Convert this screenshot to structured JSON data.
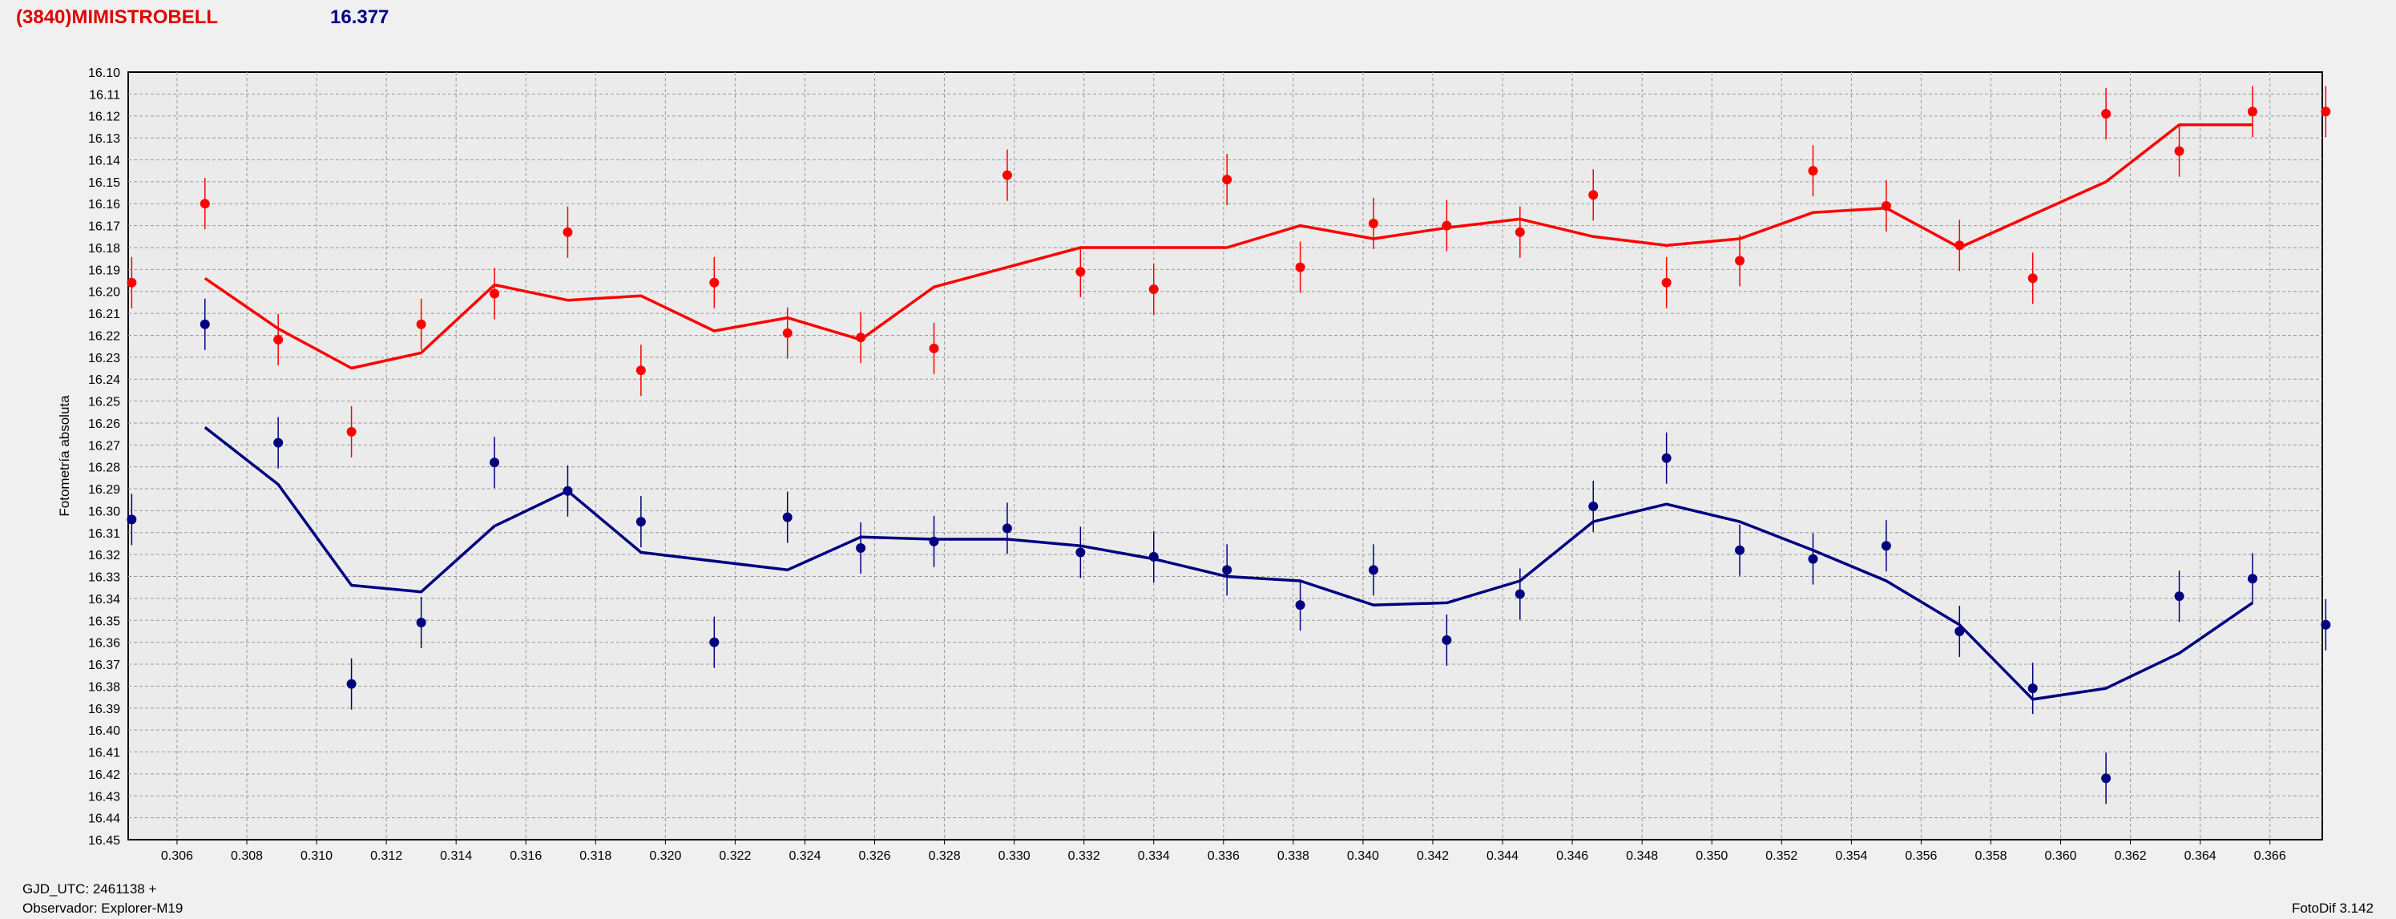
{
  "header": {
    "title": "(3840)MIMISTROBELL",
    "magnitude": "16.377"
  },
  "footer": {
    "gjd": "GJD_UTC: 2461138 +",
    "observer": "Observador: Explorer-M19",
    "version": "FotoDif 3.142"
  },
  "chart_data": {
    "type": "scatter",
    "ylabel": "Fotometría absoluta",
    "xlim": [
      0.3046,
      0.3675
    ],
    "ylim": [
      16.1,
      16.45
    ],
    "y_inverted": true,
    "grid": true,
    "x_ticks": [
      "0.306",
      "0.308",
      "0.310",
      "0.312",
      "0.314",
      "0.316",
      "0.318",
      "0.320",
      "0.322",
      "0.324",
      "0.326",
      "0.328",
      "0.330",
      "0.332",
      "0.334",
      "0.336",
      "0.338",
      "0.340",
      "0.342",
      "0.344",
      "0.346",
      "0.348",
      "0.350",
      "0.352",
      "0.354",
      "0.356",
      "0.358",
      "0.360",
      "0.362",
      "0.364",
      "0.366"
    ],
    "y_ticks": [
      "16.10",
      "16.11",
      "16.12",
      "16.13",
      "16.14",
      "16.15",
      "16.16",
      "16.17",
      "16.18",
      "16.19",
      "16.20",
      "16.21",
      "16.22",
      "16.23",
      "16.24",
      "16.25",
      "16.26",
      "16.27",
      "16.28",
      "16.29",
      "16.30",
      "16.31",
      "16.32",
      "16.33",
      "16.34",
      "16.35",
      "16.36",
      "16.37",
      "16.38",
      "16.39",
      "16.40",
      "16.41",
      "16.42",
      "16.43",
      "16.44",
      "16.45"
    ],
    "series": [
      {
        "color": "#ff0000",
        "points": [
          {
            "x": 0.3047,
            "y": 16.196
          },
          {
            "x": 0.3068,
            "y": 16.16
          },
          {
            "x": 0.3089,
            "y": 16.222
          },
          {
            "x": 0.311,
            "y": 16.264
          },
          {
            "x": 0.313,
            "y": 16.215
          },
          {
            "x": 0.3151,
            "y": 16.201
          },
          {
            "x": 0.3172,
            "y": 16.173
          },
          {
            "x": 0.3193,
            "y": 16.236
          },
          {
            "x": 0.3214,
            "y": 16.196
          },
          {
            "x": 0.3235,
            "y": 16.219
          },
          {
            "x": 0.3256,
            "y": 16.221
          },
          {
            "x": 0.3277,
            "y": 16.226
          },
          {
            "x": 0.3298,
            "y": 16.147
          },
          {
            "x": 0.3319,
            "y": 16.191
          },
          {
            "x": 0.334,
            "y": 16.199
          },
          {
            "x": 0.3361,
            "y": 16.149
          },
          {
            "x": 0.3382,
            "y": 16.189
          },
          {
            "x": 0.3403,
            "y": 16.169
          },
          {
            "x": 0.3424,
            "y": 16.17
          },
          {
            "x": 0.3445,
            "y": 16.173
          },
          {
            "x": 0.3466,
            "y": 16.156
          },
          {
            "x": 0.3487,
            "y": 16.196
          },
          {
            "x": 0.3508,
            "y": 16.186
          },
          {
            "x": 0.3529,
            "y": 16.145
          },
          {
            "x": 0.355,
            "y": 16.161
          },
          {
            "x": 0.3571,
            "y": 16.179
          },
          {
            "x": 0.3592,
            "y": 16.194
          },
          {
            "x": 0.3613,
            "y": 16.119
          },
          {
            "x": 0.3634,
            "y": 16.136
          },
          {
            "x": 0.3655,
            "y": 16.118
          },
          {
            "x": 0.3676,
            "y": 16.118
          }
        ],
        "line": [
          {
            "x": 0.3068,
            "y": 16.194
          },
          {
            "x": 0.3089,
            "y": 16.217
          },
          {
            "x": 0.311,
            "y": 16.235
          },
          {
            "x": 0.313,
            "y": 16.228
          },
          {
            "x": 0.3151,
            "y": 16.197
          },
          {
            "x": 0.3172,
            "y": 16.204
          },
          {
            "x": 0.3193,
            "y": 16.202
          },
          {
            "x": 0.3214,
            "y": 16.218
          },
          {
            "x": 0.3235,
            "y": 16.212
          },
          {
            "x": 0.3256,
            "y": 16.222
          },
          {
            "x": 0.3277,
            "y": 16.198
          },
          {
            "x": 0.3298,
            "y": 16.189
          },
          {
            "x": 0.3319,
            "y": 16.18
          },
          {
            "x": 0.334,
            "y": 16.18
          },
          {
            "x": 0.3361,
            "y": 16.18
          },
          {
            "x": 0.3382,
            "y": 16.17
          },
          {
            "x": 0.3403,
            "y": 16.176
          },
          {
            "x": 0.3424,
            "y": 16.171
          },
          {
            "x": 0.3445,
            "y": 16.167
          },
          {
            "x": 0.3466,
            "y": 16.175
          },
          {
            "x": 0.3487,
            "y": 16.179
          },
          {
            "x": 0.3508,
            "y": 16.176
          },
          {
            "x": 0.3529,
            "y": 16.164
          },
          {
            "x": 0.355,
            "y": 16.162
          },
          {
            "x": 0.3571,
            "y": 16.18
          },
          {
            "x": 0.3592,
            "y": 16.165
          },
          {
            "x": 0.3613,
            "y": 16.15
          },
          {
            "x": 0.3634,
            "y": 16.124
          },
          {
            "x": 0.3655,
            "y": 16.124
          }
        ]
      },
      {
        "color": "#000080",
        "points": [
          {
            "x": 0.3047,
            "y": 16.304
          },
          {
            "x": 0.3068,
            "y": 16.215
          },
          {
            "x": 0.3089,
            "y": 16.269
          },
          {
            "x": 0.311,
            "y": 16.379
          },
          {
            "x": 0.313,
            "y": 16.351
          },
          {
            "x": 0.3151,
            "y": 16.278
          },
          {
            "x": 0.3172,
            "y": 16.291
          },
          {
            "x": 0.3193,
            "y": 16.305
          },
          {
            "x": 0.3214,
            "y": 16.36
          },
          {
            "x": 0.3235,
            "y": 16.303
          },
          {
            "x": 0.3256,
            "y": 16.317
          },
          {
            "x": 0.3277,
            "y": 16.314
          },
          {
            "x": 0.3298,
            "y": 16.308
          },
          {
            "x": 0.3319,
            "y": 16.319
          },
          {
            "x": 0.334,
            "y": 16.321
          },
          {
            "x": 0.3361,
            "y": 16.327
          },
          {
            "x": 0.3382,
            "y": 16.343
          },
          {
            "x": 0.3403,
            "y": 16.327
          },
          {
            "x": 0.3424,
            "y": 16.359
          },
          {
            "x": 0.3445,
            "y": 16.338
          },
          {
            "x": 0.3466,
            "y": 16.298
          },
          {
            "x": 0.3487,
            "y": 16.276
          },
          {
            "x": 0.3508,
            "y": 16.318
          },
          {
            "x": 0.3529,
            "y": 16.322
          },
          {
            "x": 0.355,
            "y": 16.316
          },
          {
            "x": 0.3571,
            "y": 16.355
          },
          {
            "x": 0.3592,
            "y": 16.381
          },
          {
            "x": 0.3613,
            "y": 16.422
          },
          {
            "x": 0.3634,
            "y": 16.339
          },
          {
            "x": 0.3655,
            "y": 16.331
          },
          {
            "x": 0.3676,
            "y": 16.352
          }
        ],
        "line": [
          {
            "x": 0.3068,
            "y": 16.262
          },
          {
            "x": 0.3089,
            "y": 16.288
          },
          {
            "x": 0.311,
            "y": 16.334
          },
          {
            "x": 0.313,
            "y": 16.337
          },
          {
            "x": 0.3151,
            "y": 16.307
          },
          {
            "x": 0.3172,
            "y": 16.291
          },
          {
            "x": 0.3193,
            "y": 16.319
          },
          {
            "x": 0.3235,
            "y": 16.327
          },
          {
            "x": 0.3256,
            "y": 16.312
          },
          {
            "x": 0.3277,
            "y": 16.313
          },
          {
            "x": 0.3298,
            "y": 16.313
          },
          {
            "x": 0.3319,
            "y": 16.316
          },
          {
            "x": 0.334,
            "y": 16.322
          },
          {
            "x": 0.3361,
            "y": 16.33
          },
          {
            "x": 0.3382,
            "y": 16.332
          },
          {
            "x": 0.3403,
            "y": 16.343
          },
          {
            "x": 0.3424,
            "y": 16.342
          },
          {
            "x": 0.3445,
            "y": 16.332
          },
          {
            "x": 0.3466,
            "y": 16.305
          },
          {
            "x": 0.3487,
            "y": 16.297
          },
          {
            "x": 0.3508,
            "y": 16.305
          },
          {
            "x": 0.3529,
            "y": 16.318
          },
          {
            "x": 0.355,
            "y": 16.332
          },
          {
            "x": 0.3571,
            "y": 16.352
          },
          {
            "x": 0.3592,
            "y": 16.386
          },
          {
            "x": 0.3613,
            "y": 16.381
          },
          {
            "x": 0.3634,
            "y": 16.365
          },
          {
            "x": 0.3655,
            "y": 16.342
          }
        ]
      }
    ]
  }
}
